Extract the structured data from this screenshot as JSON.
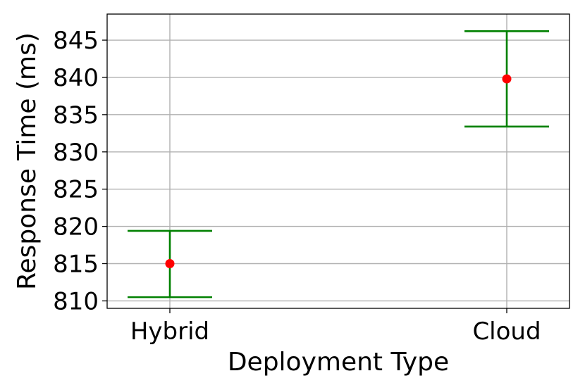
{
  "chart_data": {
    "type": "scatter",
    "categories": [
      "Hybrid",
      "Cloud"
    ],
    "xlabel": "Deployment Type",
    "ylabel": "Response Time (ms)",
    "ylim": [
      809,
      848.5
    ],
    "yticks": [
      810,
      815,
      820,
      825,
      830,
      835,
      840,
      845
    ],
    "grid": true,
    "series": [
      {
        "values": [
          815,
          839.8
        ],
        "error_low": [
          810.5,
          833.4
        ],
        "error_high": [
          819.4,
          846.2
        ]
      }
    ],
    "colors": {
      "marker": "#ff0000",
      "errorbar": "#008000",
      "grid": "#b0b0b0",
      "axis": "#000000"
    }
  }
}
